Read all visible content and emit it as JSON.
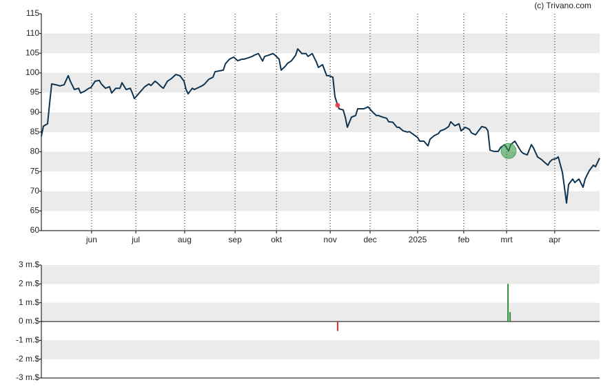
{
  "chart_data": [
    {
      "type": "line",
      "watermark": "(c) Trivano.com",
      "color": "#0d3350",
      "band_color": "#ebebeb",
      "xlim": [
        0,
        270
      ],
      "xticks": [
        {
          "value": 24.3,
          "label": "jun"
        },
        {
          "value": 45.7,
          "label": "jul"
        },
        {
          "value": 69.3,
          "label": "aug"
        },
        {
          "value": 93.7,
          "label": "sep"
        },
        {
          "value": 113.7,
          "label": "okt"
        },
        {
          "value": 139.7,
          "label": "nov"
        },
        {
          "value": 159,
          "label": "dec"
        },
        {
          "value": 182,
          "label": "2025"
        },
        {
          "value": 204.3,
          "label": "feb"
        },
        {
          "value": 225,
          "label": "mrt"
        },
        {
          "value": 248.3,
          "label": "apr"
        }
      ],
      "ylim": [
        60,
        115
      ],
      "yticks": [
        60,
        65,
        70,
        75,
        80,
        85,
        90,
        95,
        100,
        105,
        110,
        115
      ],
      "x": [
        0,
        1,
        3,
        4,
        5,
        7,
        9,
        11,
        13,
        14,
        16,
        18,
        19,
        21,
        23,
        24,
        26,
        28,
        29,
        31,
        33,
        34,
        36,
        38,
        39,
        41,
        43,
        44,
        45,
        47,
        48,
        50,
        52,
        53,
        55,
        56,
        58,
        59,
        61,
        63,
        65,
        67,
        69,
        70,
        71,
        73,
        74,
        76,
        78,
        79,
        81,
        83,
        84,
        86,
        88,
        89,
        91,
        93,
        95,
        97,
        98,
        100,
        102,
        103,
        105,
        107,
        108,
        110,
        112,
        113,
        115,
        116,
        118,
        119,
        121,
        123,
        124,
        126,
        128,
        129,
        131,
        133,
        134,
        136,
        138,
        139,
        141,
        142,
        143,
        144,
        146,
        147,
        148,
        150,
        152,
        153,
        156,
        158,
        160,
        162,
        163,
        165,
        167,
        168,
        170,
        172,
        173,
        175,
        177,
        178,
        180,
        182,
        183,
        185,
        187,
        188,
        190,
        192,
        193,
        195,
        197,
        198,
        200,
        202,
        203,
        205,
        207,
        208,
        210,
        212,
        213,
        215,
        216,
        217,
        219,
        221,
        222,
        224,
        226,
        227,
        229,
        232,
        233,
        235,
        237,
        238,
        240,
        242,
        243,
        245,
        246,
        247,
        249,
        250,
        252,
        253,
        254,
        255,
        257,
        258,
        260,
        262,
        263,
        265,
        267,
        268,
        270
      ],
      "values": [
        83.9,
        86.5,
        87.1,
        92.3,
        97.2,
        97.0,
        96.7,
        97.0,
        99.3,
        97.9,
        95.8,
        96.1,
        94.9,
        95.4,
        96.1,
        96.3,
        97.9,
        98.1,
        97.2,
        96.1,
        96.5,
        94.9,
        96.1,
        96.1,
        97.5,
        95.8,
        96.1,
        94.9,
        93.5,
        94.7,
        95.3,
        96.5,
        97.2,
        96.8,
        97.9,
        97.5,
        96.5,
        96.1,
        97.9,
        98.6,
        99.6,
        99.3,
        97.9,
        95.8,
        94.7,
        96.1,
        95.8,
        96.3,
        96.8,
        97.2,
        98.4,
        98.9,
        100.3,
        100.5,
        100.7,
        102.3,
        103.5,
        104.0,
        103.1,
        103.5,
        103.5,
        103.8,
        104.2,
        104.5,
        104.9,
        103.0,
        104.2,
        104.5,
        104.9,
        104.5,
        103.5,
        100.7,
        101.7,
        102.4,
        103.1,
        104.5,
        106.1,
        104.9,
        104.9,
        104.2,
        104.9,
        102.8,
        101.4,
        102.1,
        99.3,
        99.3,
        98.9,
        94.0,
        92.3,
        90.9,
        90.6,
        88.8,
        86.2,
        88.8,
        89.2,
        90.9,
        90.9,
        91.4,
        90.2,
        89.2,
        89.2,
        88.8,
        88.5,
        87.6,
        87.5,
        86.2,
        86.2,
        85.3,
        85.0,
        85.1,
        84.4,
        83.6,
        82.7,
        82.7,
        81.5,
        83.2,
        84.1,
        84.6,
        85.3,
        85.7,
        86.4,
        87.6,
        86.6,
        87.1,
        85.3,
        86.2,
        85.7,
        84.8,
        84.3,
        85.7,
        86.4,
        86.1,
        85.3,
        80.4,
        80.1,
        80.1,
        81.0,
        81.8,
        80.2,
        81.8,
        82.7,
        80.1,
        79.6,
        79.2,
        81.8,
        81.0,
        78.7,
        78.0,
        77.5,
        76.6,
        77.5,
        78.0,
        78.3,
        78.7,
        74.8,
        71.0,
        67.0,
        71.7,
        73.1,
        72.2,
        73.1,
        71.0,
        73.1,
        75.2,
        76.6,
        76.2,
        78.4
      ],
      "markers": [
        {
          "x": 143.3,
          "value": 91.8,
          "color": "#e8404a"
        },
        {
          "x": 226,
          "value": 80.2,
          "color": "#3a9a48"
        }
      ]
    },
    {
      "type": "bar",
      "band_color": "#ebebeb",
      "xlim": [
        0,
        270
      ],
      "ylim": [
        -3,
        3
      ],
      "yticks": [
        {
          "value": -3,
          "label": "-3 m.$"
        },
        {
          "value": -2,
          "label": "-2 m.$"
        },
        {
          "value": -1,
          "label": "-1 m.$"
        },
        {
          "value": 0,
          "label": "0 m.$"
        },
        {
          "value": 1,
          "label": "1 m.$"
        },
        {
          "value": 2,
          "label": "2 m.$"
        },
        {
          "value": 3,
          "label": "3 m.$"
        }
      ],
      "x": [
        143.3,
        225.7,
        226.7
      ],
      "values": [
        -0.5,
        2,
        0.5
      ],
      "colors": [
        "#d42a2a",
        "#2e8b3a",
        "#2e8b3a"
      ]
    }
  ]
}
